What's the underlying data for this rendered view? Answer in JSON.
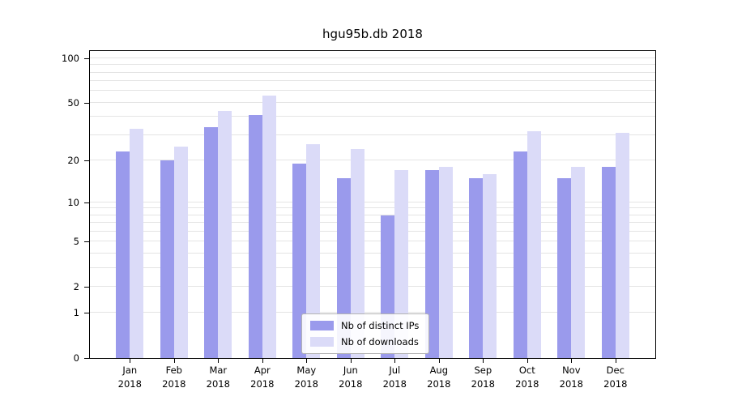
{
  "chart_data": {
    "type": "bar",
    "title": "hgu95b.db 2018",
    "categories": [
      "Jan",
      "Feb",
      "Mar",
      "Apr",
      "May",
      "Jun",
      "Jul",
      "Aug",
      "Sep",
      "Oct",
      "Nov",
      "Dec"
    ],
    "x_year_label": "2018",
    "series": [
      {
        "name": "Nb of distinct IPs",
        "color": "#9a9aec",
        "values": [
          23,
          20,
          34,
          41,
          19,
          15,
          8,
          17,
          15,
          23,
          15,
          18
        ]
      },
      {
        "name": "Nb of downloads",
        "color": "#dbdbf8",
        "values": [
          33,
          25,
          44,
          56,
          26,
          24,
          17,
          18,
          16,
          32,
          18,
          31
        ]
      }
    ],
    "y_scale": "log1p",
    "ylim": [
      0,
      112
    ],
    "y_ticks": [
      0,
      1,
      2,
      5,
      10,
      20,
      50,
      100
    ],
    "grid_values": [
      1,
      2,
      3,
      4,
      5,
      6,
      7,
      8,
      9,
      10,
      20,
      30,
      40,
      50,
      60,
      70,
      80,
      90,
      100
    ],
    "grid": true,
    "grid_color": "#e4e4e4",
    "axis_color": "#000000",
    "legend_position": "lower center inside"
  }
}
